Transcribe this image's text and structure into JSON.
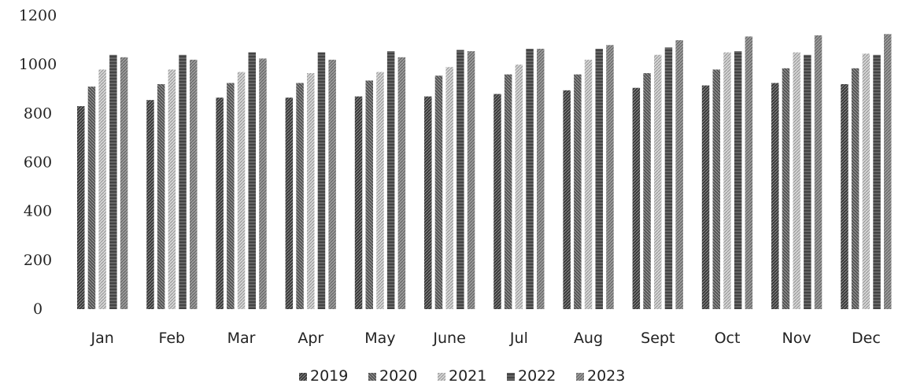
{
  "chart_data": {
    "type": "bar",
    "title": "",
    "xlabel": "",
    "ylabel": "",
    "ylim": [
      0,
      1200
    ],
    "yticks": [
      0,
      200,
      400,
      600,
      800,
      1000,
      1200
    ],
    "grid": false,
    "legend_position": "bottom",
    "categories": [
      "Jan",
      "Feb",
      "Mar",
      "Apr",
      "May",
      "June",
      "Jul",
      "Aug",
      "Sept",
      "Oct",
      "Nov",
      "Dec"
    ],
    "series": [
      {
        "name": "2019",
        "color": "#4a4a4a",
        "values": [
          830,
          855,
          865,
          865,
          870,
          870,
          880,
          895,
          905,
          915,
          925,
          920
        ]
      },
      {
        "name": "2020",
        "color": "#5a5a5a",
        "values": [
          910,
          920,
          925,
          925,
          935,
          955,
          960,
          960,
          965,
          980,
          985,
          985
        ]
      },
      {
        "name": "2021",
        "color": "#b8b8b8",
        "values": [
          980,
          980,
          970,
          965,
          970,
          990,
          1000,
          1020,
          1040,
          1050,
          1050,
          1045
        ]
      },
      {
        "name": "2022",
        "color": "#555555",
        "values": [
          1040,
          1040,
          1050,
          1050,
          1055,
          1060,
          1065,
          1065,
          1070,
          1055,
          1040,
          1040
        ]
      },
      {
        "name": "2023",
        "color": "#8a8a8a",
        "values": [
          1030,
          1020,
          1025,
          1020,
          1030,
          1055,
          1065,
          1080,
          1100,
          1115,
          1120,
          1125
        ]
      }
    ]
  }
}
